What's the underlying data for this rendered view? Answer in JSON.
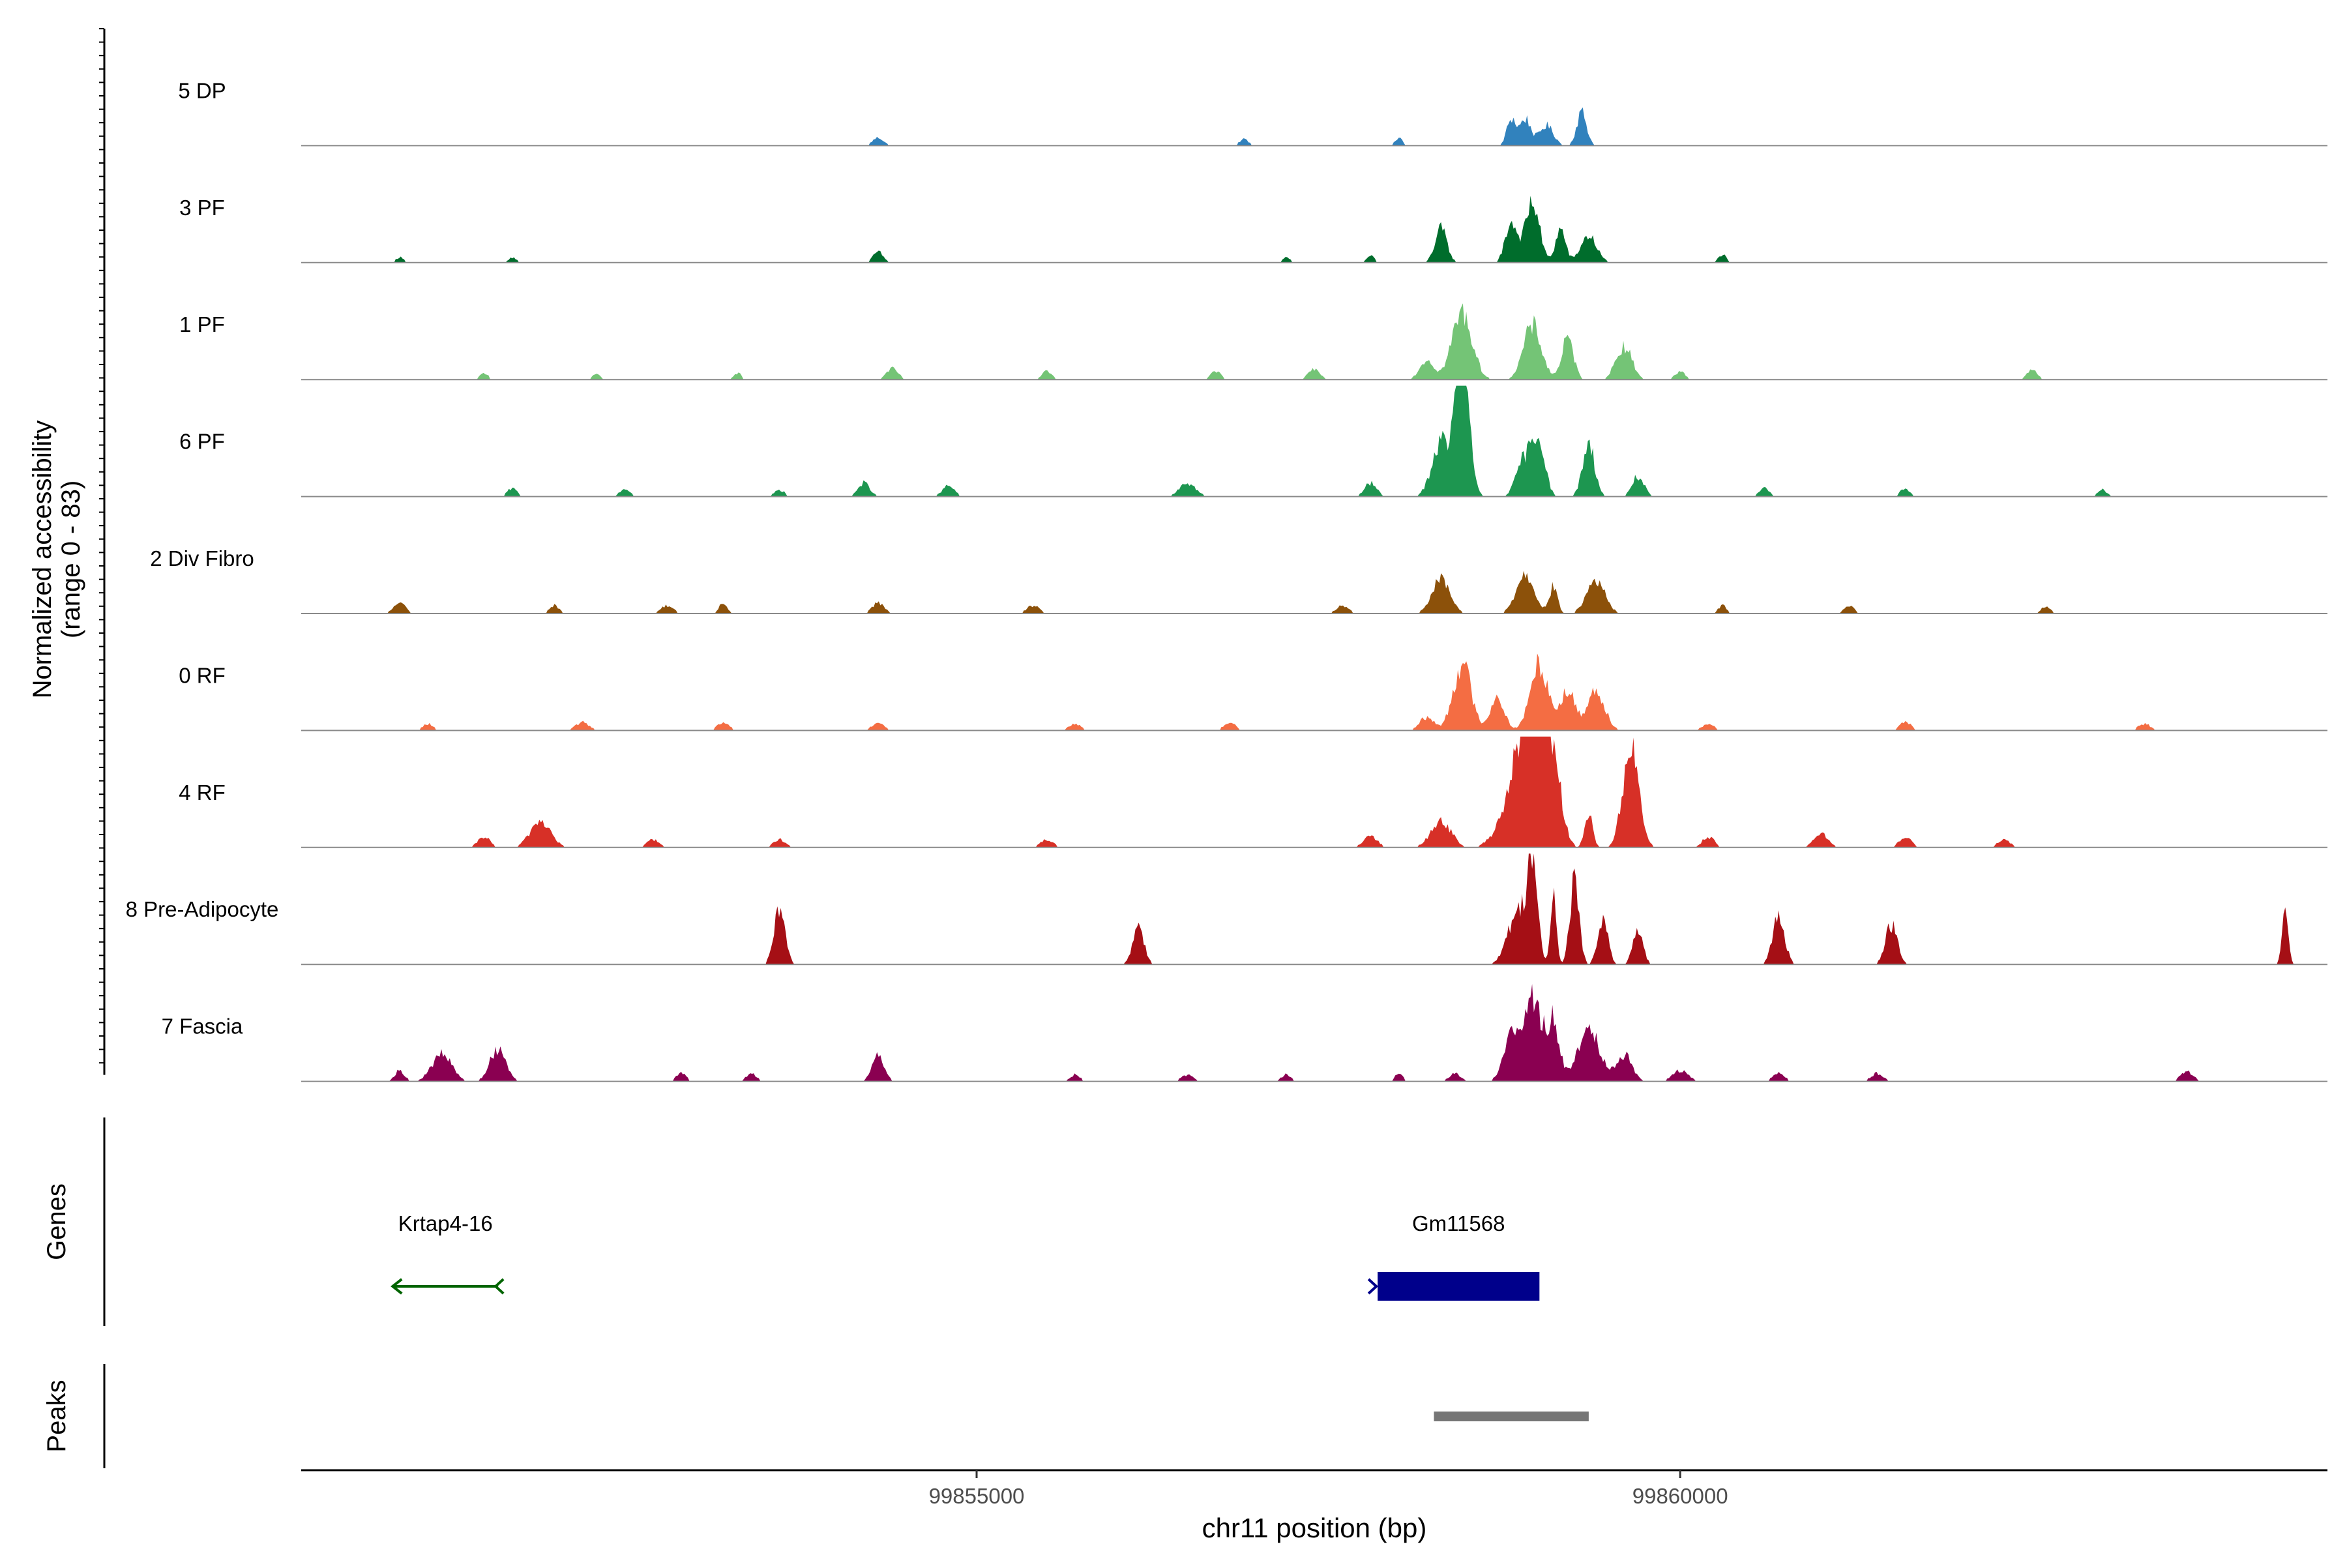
{
  "chart_data": {
    "type": "area",
    "title": "",
    "ylabel_line1": "Normalized accessibility",
    "ylabel_line2": "(range 0 - 83)",
    "xlabel": "chr11 position (bp)",
    "xlim": [
      99850200,
      99864600
    ],
    "xticks": [
      {
        "value": 99855000,
        "label": "99855000"
      },
      {
        "value": 99860000,
        "label": "99860000"
      }
    ],
    "ylim": [
      0,
      83
    ],
    "series": [
      {
        "name": "5 DP",
        "color": "#3182BD",
        "peaks": [
          [
            99854300,
            55,
            6
          ],
          [
            99856900,
            45,
            5
          ],
          [
            99858000,
            35,
            6
          ],
          [
            99858800,
            45,
            20
          ],
          [
            99858900,
            55,
            20
          ],
          [
            99859050,
            70,
            15
          ],
          [
            99859300,
            50,
            25
          ]
        ]
      },
      {
        "name": "3 PF",
        "color": "#006D2C",
        "peaks": [
          [
            99850900,
            40,
            4
          ],
          [
            99851700,
            40,
            4
          ],
          [
            99854300,
            50,
            8
          ],
          [
            99857200,
            40,
            4
          ],
          [
            99857800,
            40,
            5
          ],
          [
            99858300,
            60,
            25
          ],
          [
            99858800,
            60,
            30
          ],
          [
            99858950,
            70,
            45
          ],
          [
            99859150,
            50,
            25
          ],
          [
            99859350,
            80,
            20
          ],
          [
            99860300,
            40,
            6
          ]
        ]
      },
      {
        "name": "1 PF",
        "color": "#74C476",
        "peaks": [
          [
            99851500,
            40,
            5
          ],
          [
            99852300,
            40,
            4
          ],
          [
            99853300,
            40,
            5
          ],
          [
            99854400,
            60,
            8
          ],
          [
            99855500,
            50,
            6
          ],
          [
            99856700,
            50,
            6
          ],
          [
            99857400,
            60,
            8
          ],
          [
            99858200,
            70,
            15
          ],
          [
            99858450,
            100,
            50
          ],
          [
            99858950,
            90,
            40
          ],
          [
            99859200,
            60,
            30
          ],
          [
            99859600,
            80,
            25
          ],
          [
            99860000,
            50,
            6
          ],
          [
            99862500,
            50,
            8
          ]
        ]
      },
      {
        "name": "6 PF",
        "color": "#1D9650",
        "peaks": [
          [
            99851700,
            50,
            6
          ],
          [
            99852500,
            50,
            6
          ],
          [
            99853600,
            50,
            5
          ],
          [
            99854200,
            60,
            10
          ],
          [
            99854800,
            60,
            8
          ],
          [
            99856500,
            80,
            10
          ],
          [
            99857800,
            60,
            10
          ],
          [
            99858300,
            90,
            40
          ],
          [
            99858450,
            70,
            100
          ],
          [
            99858900,
            80,
            30
          ],
          [
            99859000,
            60,
            40
          ],
          [
            99859350,
            60,
            40
          ],
          [
            99859700,
            60,
            15
          ],
          [
            99860600,
            50,
            6
          ],
          [
            99861600,
            50,
            6
          ],
          [
            99863000,
            50,
            5
          ]
        ]
      },
      {
        "name": "2 Div Fibro",
        "color": "#8C510A",
        "peaks": [
          [
            99850900,
            60,
            8
          ],
          [
            99852000,
            50,
            6
          ],
          [
            99852800,
            60,
            6
          ],
          [
            99853200,
            40,
            8
          ],
          [
            99854300,
            60,
            8
          ],
          [
            99855400,
            60,
            6
          ],
          [
            99857600,
            60,
            6
          ],
          [
            99858300,
            90,
            25
          ],
          [
            99858900,
            90,
            30
          ],
          [
            99859100,
            40,
            20
          ],
          [
            99859400,
            90,
            25
          ],
          [
            99860300,
            40,
            6
          ],
          [
            99861200,
            50,
            6
          ],
          [
            99862600,
            50,
            5
          ]
        ]
      },
      {
        "name": "0 RF",
        "color": "#F46D43",
        "peaks": [
          [
            99851100,
            50,
            5
          ],
          [
            99852200,
            70,
            6
          ],
          [
            99853200,
            60,
            6
          ],
          [
            99854300,
            60,
            6
          ],
          [
            99855700,
            60,
            5
          ],
          [
            99856800,
            60,
            6
          ],
          [
            99858200,
            70,
            10
          ],
          [
            99858450,
            90,
            50
          ],
          [
            99858700,
            70,
            25
          ],
          [
            99859000,
            90,
            50
          ],
          [
            99859200,
            70,
            30
          ],
          [
            99859400,
            90,
            30
          ],
          [
            99860200,
            60,
            5
          ],
          [
            99861600,
            60,
            6
          ],
          [
            99863300,
            60,
            5
          ]
        ]
      },
      {
        "name": "4 RF",
        "color": "#D73027",
        "peaks": [
          [
            99851500,
            60,
            8
          ],
          [
            99851900,
            100,
            20
          ],
          [
            99852700,
            60,
            6
          ],
          [
            99853600,
            60,
            6
          ],
          [
            99855500,
            60,
            6
          ],
          [
            99857800,
            70,
            8
          ],
          [
            99858300,
            100,
            20
          ],
          [
            99858850,
            150,
            50
          ],
          [
            99858950,
            100,
            90
          ],
          [
            99859100,
            80,
            60
          ],
          [
            99859350,
            40,
            25
          ],
          [
            99859650,
            80,
            75
          ],
          [
            99860200,
            60,
            8
          ],
          [
            99861000,
            70,
            10
          ],
          [
            99861600,
            60,
            8
          ],
          [
            99862300,
            60,
            6
          ]
        ]
      },
      {
        "name": "8 Pre-Adipocyte",
        "color": "#A50F15",
        "peaks": [
          [
            99853600,
            55,
            40
          ],
          [
            99856150,
            55,
            30
          ],
          [
            99858850,
            100,
            40
          ],
          [
            99858950,
            50,
            70
          ],
          [
            99859100,
            30,
            50
          ],
          [
            99859250,
            45,
            65
          ],
          [
            99859450,
            50,
            35
          ],
          [
            99859700,
            50,
            25
          ],
          [
            99860700,
            60,
            35
          ],
          [
            99861500,
            60,
            30
          ],
          [
            99864300,
            30,
            40
          ]
        ]
      },
      {
        "name": "7 Fascia",
        "color": "#8A0051",
        "peaks": [
          [
            99850900,
            50,
            8
          ],
          [
            99851200,
            100,
            20
          ],
          [
            99851600,
            80,
            25
          ],
          [
            99852900,
            50,
            6
          ],
          [
            99853400,
            50,
            6
          ],
          [
            99854300,
            60,
            20
          ],
          [
            99855700,
            50,
            5
          ],
          [
            99856500,
            60,
            5
          ],
          [
            99857200,
            50,
            5
          ],
          [
            99858000,
            40,
            6
          ],
          [
            99858400,
            60,
            6
          ],
          [
            99858800,
            80,
            30
          ],
          [
            99858950,
            100,
            60
          ],
          [
            99859100,
            60,
            40
          ],
          [
            99859350,
            110,
            40
          ],
          [
            99859600,
            80,
            20
          ],
          [
            99860000,
            80,
            8
          ],
          [
            99860700,
            60,
            6
          ],
          [
            99861400,
            60,
            6
          ],
          [
            99863600,
            60,
            8
          ]
        ]
      }
    ],
    "genes_label": "Genes",
    "genes": [
      {
        "name": "Krtap4-16",
        "start": 99850850,
        "end": 99851600,
        "strand": "-",
        "color": "#006400"
      },
      {
        "name": "Gm11568",
        "start": 99857850,
        "end": 99859000,
        "strand": "-",
        "color": "#00008B"
      }
    ],
    "peaks_label": "Peaks",
    "peaks": [
      {
        "start": 99858250,
        "end": 99859350,
        "color": "#767676"
      }
    ],
    "grid": false
  }
}
